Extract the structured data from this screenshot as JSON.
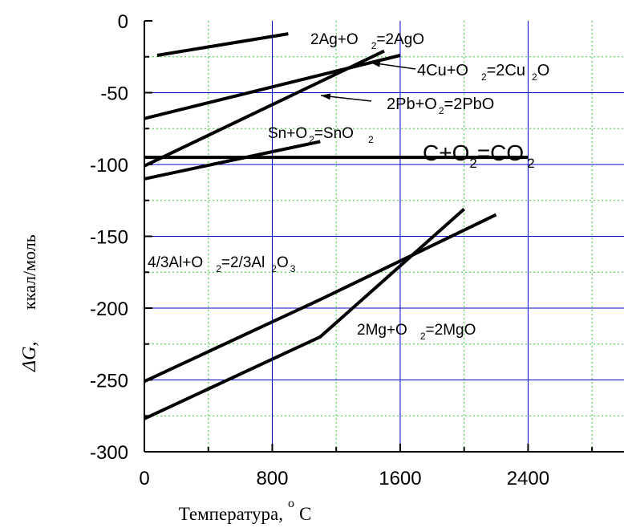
{
  "chart_data": {
    "type": "line",
    "title": "",
    "xlabel": "Температура,",
    "xlabel_unit_sup": "o",
    "xlabel_unit": "C",
    "ylabel_symbol": "ΔG,",
    "ylabel_unit": "ккал/моль",
    "xlim": [
      0,
      3000
    ],
    "ylim": [
      -300,
      0
    ],
    "xticks": [
      0,
      800,
      1600,
      2400
    ],
    "xtick_labels": [
      "0",
      "800",
      "1600",
      "2400"
    ],
    "yticks": [
      0,
      -50,
      -100,
      -150,
      -200,
      -250,
      -300
    ],
    "ytick_labels": [
      "0",
      "-50",
      "-100",
      "-150",
      "-200",
      "-250",
      "-300"
    ],
    "major_grid_x": [
      800,
      1600,
      2400
    ],
    "major_grid_y": [
      -50,
      -100,
      -150,
      -200,
      -250
    ],
    "minor_grid_x": [
      400,
      1200,
      2000,
      2800
    ],
    "minor_grid_y": [
      -25,
      -75,
      -125,
      -175,
      -225,
      -275
    ],
    "grid": true,
    "major_grid_color": "#0000cc",
    "minor_grid_color": "#33cc33",
    "line_color": "#000000",
    "series": [
      {
        "x": [
          80,
          900
        ],
        "y": [
          -24,
          -9
        ]
      },
      {
        "x": [
          0,
          1600
        ],
        "y": [
          -68,
          -24
        ]
      },
      {
        "x": [
          0,
          1500
        ],
        "y": [
          -101,
          -21
        ]
      },
      {
        "x": [
          0,
          1100
        ],
        "y": [
          -110,
          -84
        ]
      },
      {
        "x": [
          0,
          2400
        ],
        "y": [
          -95,
          -95
        ]
      },
      {
        "x": [
          0,
          1100,
          2200
        ],
        "y": [
          -251,
          -194,
          -135
        ]
      },
      {
        "x": [
          0,
          1100,
          2000
        ],
        "y": [
          -277,
          -220,
          -131
        ]
      }
    ],
    "annotations": [
      {
        "segments": [
          {
            "text": "2Ag+O"
          },
          {
            "text": "2",
            "sub": true
          },
          {
            "text": "=2AgO"
          }
        ]
      },
      {
        "segments": [
          {
            "text": "4Cu+O"
          },
          {
            "text": "2",
            "sub": true
          },
          {
            "text": "=2Cu"
          },
          {
            "text": "2",
            "sub": true
          },
          {
            "text": "O"
          }
        ]
      },
      {
        "segments": [
          {
            "text": "2Pb+O"
          },
          {
            "text": "2",
            "sub": true
          },
          {
            "text": "=2PbO"
          }
        ]
      },
      {
        "segments": [
          {
            "text": "Sn+O"
          },
          {
            "text": "2",
            "sub": true
          },
          {
            "text": "=SnO"
          },
          {
            "text": "2",
            "sub": true
          }
        ]
      },
      {
        "segments": [
          {
            "text": "C+O"
          },
          {
            "text": "2",
            "sub": true
          },
          {
            "text": "=CO"
          },
          {
            "text": "2",
            "sub": true
          }
        ]
      },
      {
        "segments": [
          {
            "text": "4/3Al+O"
          },
          {
            "text": "2",
            "sub": true
          },
          {
            "text": "=2/3Al"
          },
          {
            "text": "2",
            "sub": true
          },
          {
            "text": "O"
          },
          {
            "text": "3",
            "sub": true
          }
        ]
      },
      {
        "segments": [
          {
            "text": "2Mg+O"
          },
          {
            "text": "2",
            "sub": true
          },
          {
            "text": "=2MgO"
          }
        ]
      }
    ]
  }
}
